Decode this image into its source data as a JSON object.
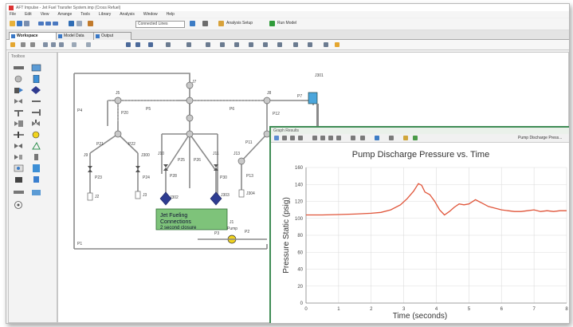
{
  "window": {
    "title": "AFT Impulse - Jet Fuel Transfer System.imp (Cross Refuel)"
  },
  "menu": [
    "File",
    "Edit",
    "View",
    "Arrange",
    "Tools",
    "Library",
    "Analysis",
    "Window",
    "Help"
  ],
  "toolbar": {
    "scenario_combo": "Connected Lines",
    "analysis_label": "Analysis Setup",
    "run_label": "Run Model"
  },
  "tabs": [
    {
      "label": "Workspace",
      "active": true
    },
    {
      "label": "Model Data",
      "active": false
    },
    {
      "label": "Output",
      "active": false
    }
  ],
  "toolbox": {
    "title": "Toolbox"
  },
  "model": {
    "junction_labels": [
      "J1",
      "J2",
      "J3",
      "J5",
      "J6",
      "J7",
      "J8",
      "J9",
      "J10",
      "J11",
      "J12",
      "J13",
      "J300",
      "J301",
      "J302",
      "J303",
      "J304"
    ],
    "pipe_labels": [
      "P1",
      "P2",
      "P3",
      "P4",
      "P5",
      "P6",
      "P7",
      "P8",
      "P9",
      "P10",
      "P11",
      "P12",
      "P13",
      "P20",
      "P21",
      "P22",
      "P23",
      "P24",
      "P25",
      "P26",
      "P28",
      "P30"
    ],
    "annotation_text": [
      "Jet Fueling",
      "Connections",
      "2 second closure"
    ],
    "pump_label": "Pump"
  },
  "graph_window": {
    "title": "Graph Results",
    "toolbar_label": "Pump Discharge Press..."
  },
  "chart_data": {
    "type": "line",
    "title": "Pump Discharge Pressure vs. Time",
    "xlabel": "Time (seconds)",
    "ylabel": "Pressure Static (psig)",
    "xlim": [
      0,
      8
    ],
    "ylim": [
      0,
      160
    ],
    "xticks": [
      "0",
      "1",
      "2",
      "3",
      "4",
      "5",
      "6",
      "7",
      "8"
    ],
    "yticks": [
      "0",
      "20",
      "40",
      "60",
      "80",
      "100",
      "120",
      "140",
      "160"
    ],
    "grid": true,
    "series": [
      {
        "name": "",
        "color": "#e0553a",
        "x": [
          0,
          0.5,
          1.0,
          1.5,
          2.0,
          2.3,
          2.6,
          2.9,
          3.1,
          3.3,
          3.45,
          3.55,
          3.65,
          3.8,
          3.95,
          4.1,
          4.25,
          4.4,
          4.55,
          4.7,
          4.85,
          5.0,
          5.2,
          5.4,
          5.6,
          5.8,
          6.0,
          6.2,
          6.4,
          6.6,
          6.8,
          7.0,
          7.2,
          7.4,
          7.6,
          7.8,
          8.0
        ],
        "y": [
          104,
          104,
          104.5,
          105,
          106,
          107,
          110,
          116,
          123,
          132,
          141,
          139,
          131,
          128,
          120,
          110,
          104,
          108,
          113,
          117,
          116,
          117,
          122,
          118,
          114,
          112,
          110,
          109,
          108,
          108,
          109,
          110,
          108,
          109,
          108,
          109,
          109
        ]
      }
    ]
  }
}
